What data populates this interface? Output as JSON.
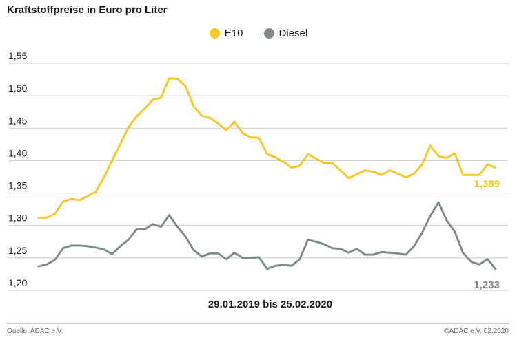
{
  "title": "Kraftstoffpreise in Euro pro Liter",
  "source": "Quelle: ADAC e.V.",
  "copyright": "©ADAC e.V.  02.2020",
  "colors": {
    "e10": "#f7c72b",
    "diesel": "#7f8c89"
  },
  "chart_data": {
    "type": "line",
    "title": "Kraftstoffpreise in Euro pro Liter",
    "xlabel": "29.01.2019 bis 25.02.2020",
    "ylabel": "",
    "ylim": [
      1.2,
      1.55
    ],
    "yticks": [
      "1,55",
      "1,50",
      "1,45",
      "1,40",
      "1,35",
      "1,30",
      "1,25",
      "1,20"
    ],
    "grid": true,
    "legend_position": "top-center",
    "series": [
      {
        "name": "E10",
        "end_label": "1,389",
        "values": [
          1.312,
          1.312,
          1.318,
          1.337,
          1.341,
          1.339,
          1.345,
          1.352,
          1.374,
          1.4,
          1.425,
          1.451,
          1.468,
          1.48,
          1.494,
          1.497,
          1.527,
          1.526,
          1.515,
          1.484,
          1.469,
          1.466,
          1.457,
          1.447,
          1.46,
          1.442,
          1.436,
          1.435,
          1.41,
          1.405,
          1.398,
          1.389,
          1.392,
          1.41,
          1.403,
          1.396,
          1.396,
          1.385,
          1.373,
          1.379,
          1.385,
          1.383,
          1.378,
          1.385,
          1.38,
          1.374,
          1.38,
          1.394,
          1.423,
          1.407,
          1.404,
          1.411,
          1.378,
          1.378,
          1.378,
          1.394,
          1.389
        ]
      },
      {
        "name": "Diesel",
        "end_label": "1,233",
        "values": [
          1.237,
          1.24,
          1.247,
          1.265,
          1.269,
          1.269,
          1.268,
          1.266,
          1.263,
          1.256,
          1.268,
          1.278,
          1.294,
          1.294,
          1.302,
          1.298,
          1.316,
          1.298,
          1.283,
          1.262,
          1.252,
          1.257,
          1.257,
          1.248,
          1.258,
          1.25,
          1.25,
          1.251,
          1.233,
          1.238,
          1.239,
          1.238,
          1.248,
          1.278,
          1.275,
          1.271,
          1.265,
          1.264,
          1.258,
          1.264,
          1.255,
          1.255,
          1.259,
          1.258,
          1.257,
          1.255,
          1.268,
          1.289,
          1.315,
          1.336,
          1.308,
          1.29,
          1.258,
          1.244,
          1.24,
          1.248,
          1.233
        ]
      }
    ]
  }
}
